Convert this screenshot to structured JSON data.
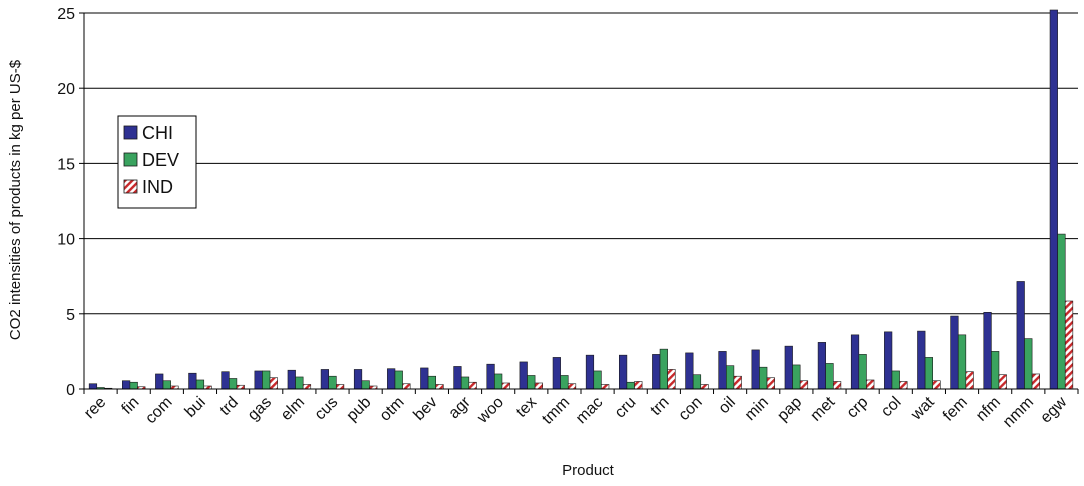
{
  "chart_data": {
    "type": "bar",
    "title": "",
    "xlabel": "Product",
    "ylabel": "CO2 intensities of products in kg per US-$",
    "ylim": [
      0,
      25
    ],
    "yticks": [
      0,
      5,
      10,
      15,
      20,
      25
    ],
    "grid": true,
    "legend_position": "left",
    "categories": [
      "ree",
      "fin",
      "com",
      "bui",
      "trd",
      "gas",
      "elm",
      "cus",
      "pub",
      "otm",
      "bev",
      "agr",
      "woo",
      "tex",
      "tmm",
      "mac",
      "cru",
      "trn",
      "con",
      "oil",
      "min",
      "pap",
      "met",
      "crp",
      "col",
      "wat",
      "fem",
      "nfm",
      "nmm",
      "egw"
    ],
    "series": [
      {
        "name": "CHI",
        "color": "#2e3192",
        "pattern": "solid",
        "values": [
          0.35,
          0.55,
          1.0,
          1.05,
          1.15,
          1.2,
          1.25,
          1.3,
          1.3,
          1.35,
          1.4,
          1.5,
          1.65,
          1.8,
          2.1,
          2.25,
          2.25,
          2.3,
          2.4,
          2.5,
          2.6,
          2.85,
          3.1,
          3.6,
          3.8,
          3.85,
          4.85,
          5.1,
          7.15,
          25.2
        ]
      },
      {
        "name": "DEV",
        "color": "#3aa35f",
        "pattern": "solid",
        "values": [
          0.1,
          0.45,
          0.55,
          0.6,
          0.7,
          1.2,
          0.8,
          0.85,
          0.55,
          1.2,
          0.85,
          0.8,
          1.0,
          0.9,
          0.9,
          1.2,
          0.45,
          2.65,
          0.95,
          1.55,
          1.45,
          1.6,
          1.7,
          2.3,
          1.2,
          2.1,
          3.6,
          2.5,
          3.35,
          10.3
        ]
      },
      {
        "name": "IND",
        "color": "#c8282a",
        "pattern": "hatch",
        "values": [
          0.05,
          0.15,
          0.2,
          0.2,
          0.25,
          0.75,
          0.3,
          0.3,
          0.2,
          0.35,
          0.3,
          0.45,
          0.4,
          0.4,
          0.35,
          0.3,
          0.5,
          1.3,
          0.3,
          0.85,
          0.75,
          0.55,
          0.5,
          0.6,
          0.5,
          0.55,
          1.15,
          0.95,
          1.0,
          5.85
        ]
      }
    ]
  }
}
